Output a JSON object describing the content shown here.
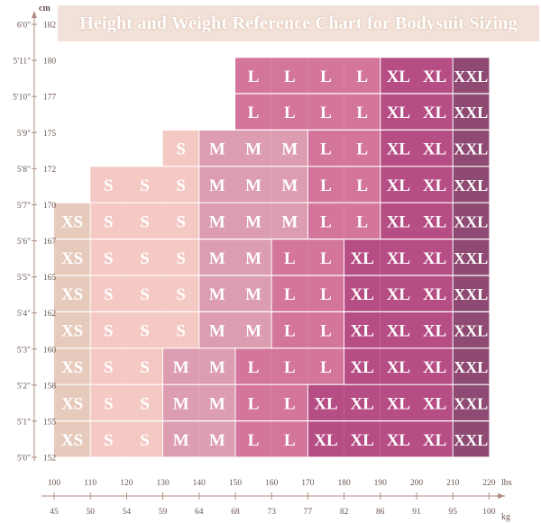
{
  "chart_data": {
    "type": "heatmap",
    "title": "Height and Weight Reference Chart for Bodysuit Sizing",
    "y_unit": "cm",
    "x_unit_top": "lbs",
    "x_unit_bottom": "kg",
    "height_ticks": [
      {
        "ft": "5'0\"",
        "cm": "152"
      },
      {
        "ft": "5'1\"",
        "cm": "155"
      },
      {
        "ft": "5'2\"",
        "cm": "158"
      },
      {
        "ft": "5'3\"",
        "cm": "160"
      },
      {
        "ft": "5'4\"",
        "cm": "162"
      },
      {
        "ft": "5'5\"",
        "cm": "165"
      },
      {
        "ft": "5'6\"",
        "cm": "167"
      },
      {
        "ft": "5'7\"",
        "cm": "170"
      },
      {
        "ft": "5'8\"",
        "cm": "172"
      },
      {
        "ft": "5'9\"",
        "cm": "175"
      },
      {
        "ft": "5'10\"",
        "cm": "177"
      },
      {
        "ft": "5'11\"",
        "cm": "180"
      },
      {
        "ft": "6'0\"",
        "cm": "182"
      }
    ],
    "lbs_ticks": [
      "100",
      "110",
      "120",
      "130",
      "140",
      "150",
      "160",
      "170",
      "180",
      "190",
      "200",
      "210",
      "220"
    ],
    "kg_ticks": [
      "45",
      "50",
      "54",
      "59",
      "64",
      "68",
      "73",
      "77",
      "82",
      "86",
      "91",
      "95",
      "100"
    ],
    "grid": [
      [
        "XS",
        "S",
        "S",
        "M",
        "M",
        "L",
        "L",
        "XL",
        "XL",
        "XL",
        "XL",
        "XXL"
      ],
      [
        "XS",
        "S",
        "S",
        "M",
        "M",
        "L",
        "L",
        "XL",
        "XL",
        "XL",
        "XL",
        "XXL"
      ],
      [
        "XS",
        "S",
        "S",
        "M",
        "M",
        "L",
        "L",
        "L",
        "XL",
        "XL",
        "XL",
        "XXL"
      ],
      [
        "XS",
        "S",
        "S",
        "S",
        "M",
        "M",
        "L",
        "L",
        "XL",
        "XL",
        "XL",
        "XXL"
      ],
      [
        "XS",
        "S",
        "S",
        "S",
        "M",
        "M",
        "L",
        "L",
        "XL",
        "XL",
        "XL",
        "XXL"
      ],
      [
        "XS",
        "S",
        "S",
        "S",
        "M",
        "M",
        "L",
        "L",
        "XL",
        "XL",
        "XL",
        "XXL"
      ],
      [
        "XS",
        "S",
        "S",
        "S",
        "M",
        "M",
        "M",
        "L",
        "L",
        "XL",
        "XL",
        "XXL"
      ],
      [
        "",
        "S",
        "S",
        "S",
        "M",
        "M",
        "M",
        "L",
        "L",
        "XL",
        "XL",
        "XXL"
      ],
      [
        "",
        "",
        "",
        "S",
        "M",
        "M",
        "M",
        "L",
        "L",
        "XL",
        "XL",
        "XXL"
      ],
      [
        "",
        "",
        "",
        "",
        "",
        "L",
        "L",
        "L",
        "L",
        "XL",
        "XL",
        "XXL"
      ],
      [
        "",
        "",
        "",
        "",
        "",
        "L",
        "L",
        "L",
        "L",
        "XL",
        "XL",
        "XXL"
      ]
    ],
    "colors": {
      "XS": "#e6cbbd",
      "S": "#f4c8c3",
      "M": "#dc9db1",
      "L": "#d4759c",
      "XL": "#b64d84",
      "XXL": "#8e4a72",
      "axis": "#b08a82",
      "text": "#ffffff",
      "grid_line": "#ffffff"
    }
  }
}
